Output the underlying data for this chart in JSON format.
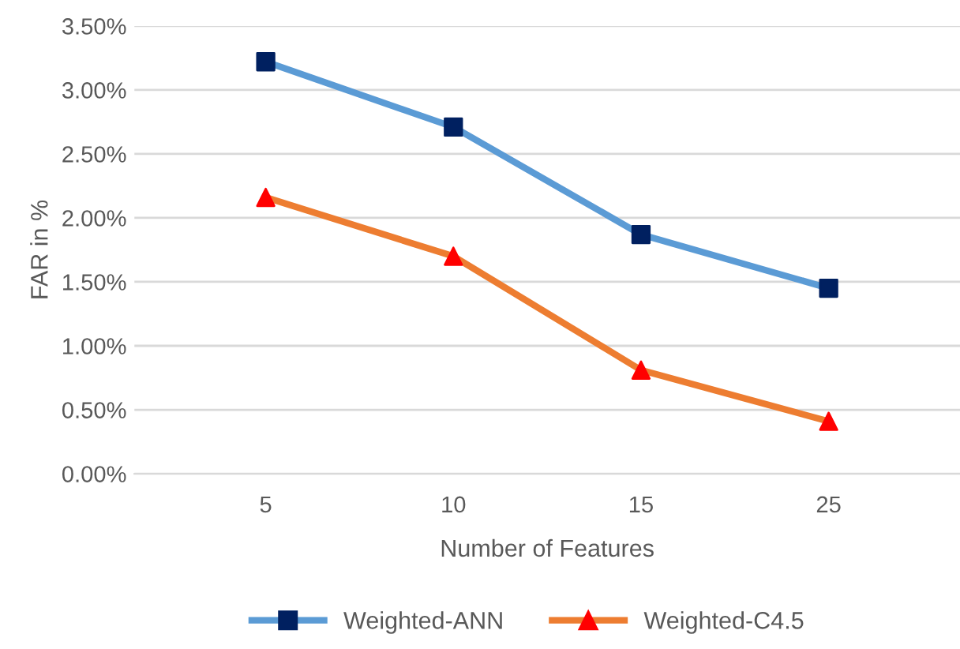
{
  "chart_data": {
    "type": "line",
    "xlabel": "Number of Features",
    "ylabel": "FAR in %",
    "categories": [
      "5",
      "10",
      "15",
      "25"
    ],
    "series": [
      {
        "name": "Weighted-ANN",
        "color": "#5b9bd5",
        "colors": [
          "#002060",
          "#002060",
          "#002060",
          "#002060"
        ],
        "marker": "square",
        "values": [
          3.22,
          2.71,
          1.87,
          1.45
        ]
      },
      {
        "name": "Weighted-C4.5",
        "color": "#ed7d31",
        "colors": [
          "#ff0000",
          "#ff0000",
          "#ff0000",
          "#ff0000"
        ],
        "marker": "triangle",
        "values": [
          2.16,
          1.7,
          0.81,
          0.41
        ]
      }
    ],
    "ylim": [
      0,
      3.5
    ],
    "yticks": [
      {
        "value": 0,
        "label": "0.00%"
      },
      {
        "value": 0.5,
        "label": "0.50%"
      },
      {
        "value": 1,
        "label": "1.00%"
      },
      {
        "value": 1.5,
        "label": "1.50%"
      },
      {
        "value": 2,
        "label": "2.00%"
      },
      {
        "value": 2.5,
        "label": "2.50%"
      },
      {
        "value": 3,
        "label": "3.00%"
      },
      {
        "value": 3.5,
        "label": "3.50%"
      }
    ],
    "grid": "y",
    "legend": "bottom"
  }
}
